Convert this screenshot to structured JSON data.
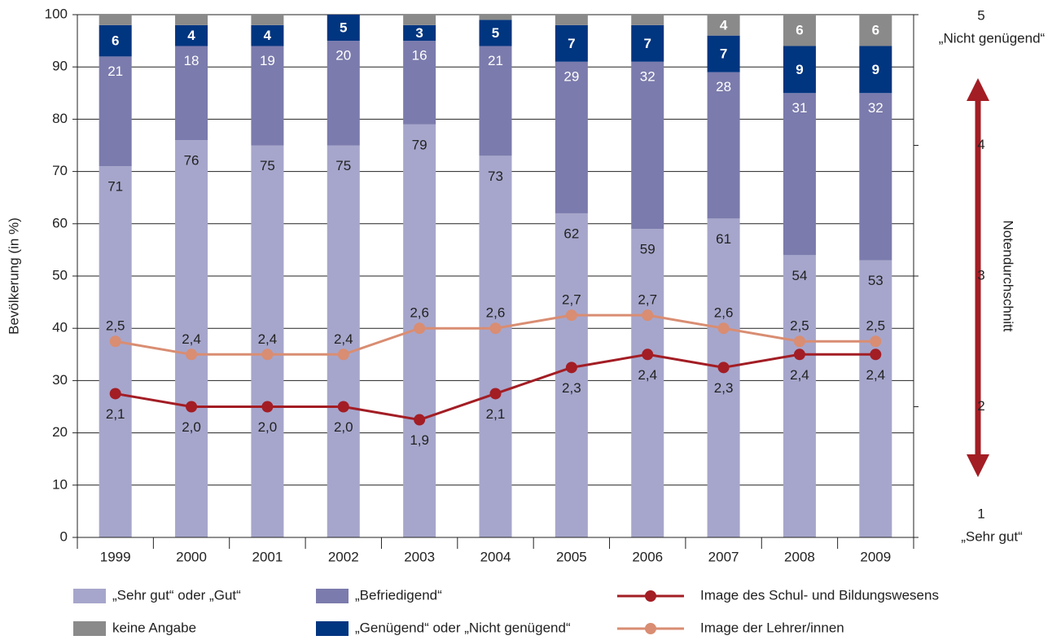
{
  "chart_data": {
    "type": "bar",
    "stacked": true,
    "categories": [
      "1999",
      "2000",
      "2001",
      "2002",
      "2003",
      "2004",
      "2005",
      "2006",
      "2007",
      "2008",
      "2009"
    ],
    "ylabel": "Bevölkerung (in %)",
    "y2label": "Notendurchschnitt",
    "ylim": [
      0,
      100
    ],
    "yticks": [
      0,
      10,
      20,
      30,
      40,
      50,
      60,
      70,
      80,
      90,
      100
    ],
    "y2lim": [
      1,
      5
    ],
    "y2ticks": [
      1,
      2,
      3,
      4,
      5
    ],
    "y2_annotations": [
      {
        "text": "„Nicht genügend“",
        "y": 5
      },
      {
        "text": "„Sehr gut“",
        "y": 1
      }
    ],
    "grid": true,
    "series": [
      {
        "name": "„Sehr gut“ oder „Gut“",
        "color": "#a6a6cc",
        "label_color": "#222222",
        "values": [
          71,
          76,
          75,
          75,
          79,
          73,
          62,
          59,
          61,
          54,
          53
        ]
      },
      {
        "name": "„Befriedigend“",
        "color": "#7b7bad",
        "label_color": "#ffffff",
        "values": [
          21,
          18,
          19,
          20,
          16,
          21,
          29,
          32,
          28,
          31,
          32
        ]
      },
      {
        "name": "„Genügend“ oder „Nicht genügend“",
        "color": "#003580",
        "label_color": "#ffffff",
        "values": [
          6,
          4,
          4,
          5,
          3,
          5,
          7,
          7,
          7,
          9,
          9
        ]
      },
      {
        "name": "keine Angabe",
        "color": "#8a8a8a",
        "label_color": "#ffffff",
        "values": [
          2,
          2,
          2,
          0,
          2,
          1,
          2,
          2,
          4,
          6,
          6
        ],
        "value_labels": [
          null,
          null,
          null,
          null,
          null,
          null,
          null,
          null,
          "4",
          "6",
          "6"
        ]
      },
      {
        "name": "Image des Schul- und Bildungswesens",
        "type": "line",
        "axis": "y2",
        "color": "#a31d24",
        "label_position": "below",
        "values": [
          2.1,
          2.0,
          2.0,
          2.0,
          1.9,
          2.1,
          2.3,
          2.4,
          2.3,
          2.4,
          2.4
        ],
        "value_labels": [
          "2,1",
          "2,0",
          "2,0",
          "2,0",
          "1,9",
          "2,1",
          "2,3",
          "2,4",
          "2,3",
          "2,4",
          "2,4"
        ]
      },
      {
        "name": "Image der Lehrer/innen",
        "type": "line",
        "axis": "y2",
        "color": "#d98d72",
        "label_position": "above",
        "values": [
          2.5,
          2.4,
          2.4,
          2.4,
          2.6,
          2.6,
          2.7,
          2.7,
          2.6,
          2.5,
          2.5
        ],
        "value_labels": [
          "2,5",
          "2,4",
          "2,4",
          "2,4",
          "2,6",
          "2,6",
          "2,7",
          "2,7",
          "2,6",
          "2,5",
          "2,5"
        ]
      }
    ]
  }
}
